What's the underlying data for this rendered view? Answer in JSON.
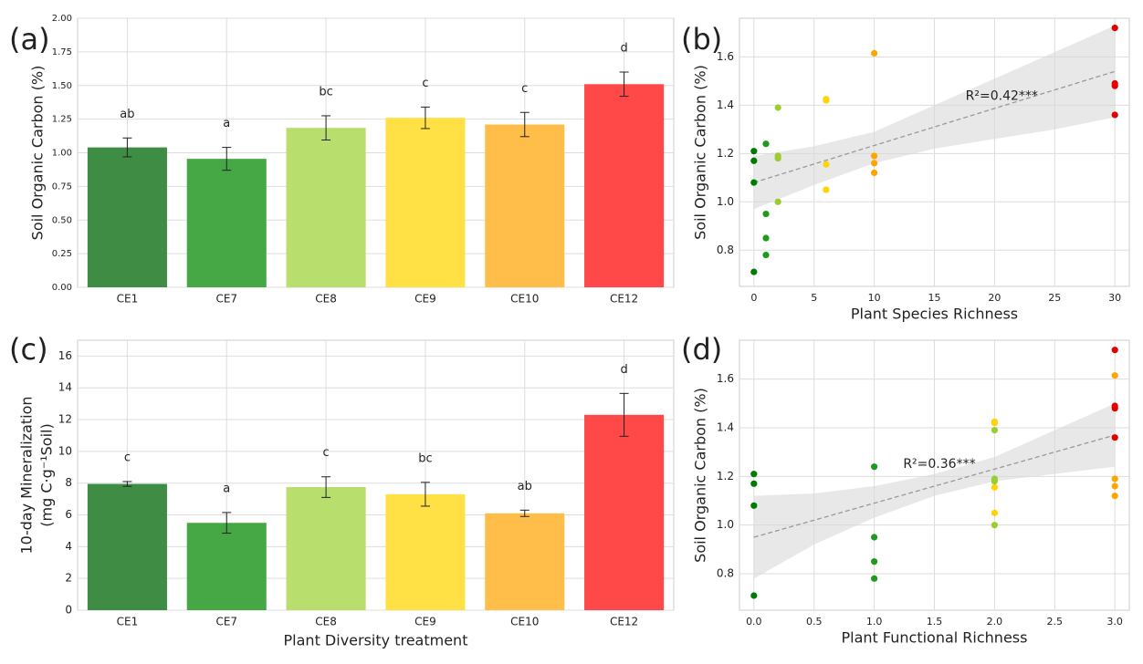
{
  "chart_data": [
    {
      "type": "bar",
      "panel_label": "(a)",
      "ylabel": "Soil Organic Carbon (%)",
      "categories": [
        "CE1",
        "CE7",
        "CE8",
        "CE9",
        "CE10",
        "CE12"
      ],
      "values": [
        1.04,
        0.955,
        1.185,
        1.26,
        1.21,
        1.51
      ],
      "errors": [
        0.07,
        0.085,
        0.09,
        0.08,
        0.09,
        0.09
      ],
      "letters": [
        "ab",
        "a",
        "bc",
        "c",
        "c",
        "d"
      ],
      "colors": [
        "#3f8c45",
        "#45a845",
        "#b8de6e",
        "#ffe045",
        "#ffbd4a",
        "#ff4848"
      ],
      "ylim": [
        0,
        2.0
      ],
      "yticks": [
        {
          "value": 0,
          "label": "0.00"
        },
        {
          "value": 0.25,
          "label": "0.25"
        },
        {
          "value": 0.5,
          "label": "0.50"
        },
        {
          "value": 0.75,
          "label": "0.75"
        },
        {
          "value": 1.0,
          "label": "1.00"
        },
        {
          "value": 1.25,
          "label": "1.25"
        },
        {
          "value": 1.5,
          "label": "1.50"
        },
        {
          "value": 1.75,
          "label": "1.75"
        },
        {
          "value": 2.0,
          "label": "2.00"
        }
      ],
      "grid": true
    },
    {
      "type": "scatter",
      "panel_label": "(b)",
      "ylabel": "Soil Organic Carbon (%)",
      "xlabel": "Plant Species Richness",
      "x": [
        0,
        0,
        0,
        0,
        1,
        1,
        1,
        1,
        2,
        2,
        2,
        2,
        6,
        6,
        6,
        6,
        10,
        10,
        10,
        10,
        30,
        30,
        30,
        30
      ],
      "y": [
        0.71,
        1.08,
        1.17,
        1.21,
        0.78,
        0.85,
        0.95,
        1.24,
        1.0,
        1.18,
        1.19,
        1.39,
        1.05,
        1.155,
        1.42,
        1.425,
        1.12,
        1.16,
        1.19,
        1.615,
        1.36,
        1.48,
        1.49,
        1.72
      ],
      "colors": [
        "#007a00",
        "#007a00",
        "#007a00",
        "#007a00",
        "#1e9a1e",
        "#1e9a1e",
        "#1e9a1e",
        "#1e9a1e",
        "#9acd32",
        "#9acd32",
        "#9acd32",
        "#9acd32",
        "#ffd400",
        "#ffd400",
        "#ffd400",
        "#ffd400",
        "#ffa500",
        "#ffa500",
        "#ffa500",
        "#ffa500",
        "#e50000",
        "#e50000",
        "#e50000",
        "#e50000"
      ],
      "trend": {
        "x": [
          0,
          30
        ],
        "y": [
          1.08,
          1.54
        ]
      },
      "band": {
        "x": [
          0,
          5,
          10,
          15,
          20,
          25,
          30
        ],
        "lower": [
          0.97,
          1.07,
          1.16,
          1.22,
          1.26,
          1.3,
          1.35
        ],
        "upper": [
          1.19,
          1.23,
          1.29,
          1.4,
          1.51,
          1.62,
          1.73
        ]
      },
      "annotation": "R²=0.42***",
      "xlim": [
        -1.2,
        31.2
      ],
      "ylim": [
        0.65,
        1.76
      ],
      "xticks": [
        0,
        5,
        10,
        15,
        20,
        25,
        30
      ],
      "yticks": [
        0.8,
        {
          "value": 1.0,
          "label": "1.0"
        },
        1.2,
        1.4,
        1.6
      ],
      "grid": true
    },
    {
      "type": "bar",
      "panel_label": "(c)",
      "ylabel": [
        "10-day Mineralization",
        "(mg C·g⁻¹Soil)"
      ],
      "xlabel": "Plant Diversity treatment",
      "categories": [
        "CE1",
        "CE7",
        "CE8",
        "CE9",
        "CE10",
        "CE12"
      ],
      "values": [
        7.95,
        5.5,
        7.75,
        7.3,
        6.1,
        12.3
      ],
      "errors": [
        0.15,
        0.65,
        0.65,
        0.75,
        0.2,
        1.35
      ],
      "letters": [
        "c",
        "a",
        "c",
        "bc",
        "ab",
        "d"
      ],
      "colors": [
        "#3f8c45",
        "#45a845",
        "#b8de6e",
        "#ffe045",
        "#ffbd4a",
        "#ff4848"
      ],
      "ylim": [
        0,
        17
      ],
      "yticks": [
        0,
        2,
        4,
        6,
        8,
        10,
        12,
        14,
        16
      ],
      "grid": true
    },
    {
      "type": "scatter",
      "panel_label": "(d)",
      "ylabel": "Soil Organic Carbon (%)",
      "xlabel": "Plant Functional Richness",
      "x": [
        0,
        0,
        0,
        0,
        1,
        1,
        1,
        1,
        2,
        2,
        2,
        2,
        2,
        2,
        2,
        2,
        3,
        3,
        3,
        3,
        3,
        3,
        3,
        3
      ],
      "y": [
        0.71,
        1.08,
        1.17,
        1.21,
        0.78,
        0.85,
        0.95,
        1.24,
        1.0,
        1.05,
        1.155,
        1.18,
        1.19,
        1.39,
        1.42,
        1.425,
        1.12,
        1.16,
        1.19,
        1.615,
        1.36,
        1.48,
        1.49,
        1.72
      ],
      "colors": [
        "#007a00",
        "#007a00",
        "#007a00",
        "#007a00",
        "#1e9a1e",
        "#1e9a1e",
        "#1e9a1e",
        "#1e9a1e",
        "#9acd32",
        "#ffd400",
        "#ffd400",
        "#9acd32",
        "#9acd32",
        "#9acd32",
        "#ffd400",
        "#ffd400",
        "#ffa500",
        "#ffa500",
        "#ffa500",
        "#ffa500",
        "#e50000",
        "#e50000",
        "#e50000",
        "#e50000"
      ],
      "trend": {
        "x": [
          0,
          3
        ],
        "y": [
          0.95,
          1.37
        ]
      },
      "band": {
        "x": [
          0,
          0.5,
          1,
          1.5,
          2,
          2.5,
          3
        ],
        "lower": [
          0.78,
          0.92,
          1.03,
          1.12,
          1.18,
          1.21,
          1.24
        ],
        "upper": [
          1.12,
          1.13,
          1.16,
          1.21,
          1.28,
          1.39,
          1.5
        ]
      },
      "annotation": "R²=0.36***",
      "xlim": [
        -0.12,
        3.12
      ],
      "ylim": [
        0.65,
        1.76
      ],
      "xticks": [
        {
          "value": 0,
          "label": "0.0"
        },
        0.5,
        {
          "value": 1,
          "label": "1.0"
        },
        1.5,
        {
          "value": 2,
          "label": "2.0"
        },
        2.5,
        {
          "value": 3,
          "label": "3.0"
        }
      ],
      "yticks": [
        0.8,
        {
          "value": 1.0,
          "label": "1.0"
        },
        1.2,
        1.4,
        1.6
      ],
      "grid": true
    }
  ]
}
